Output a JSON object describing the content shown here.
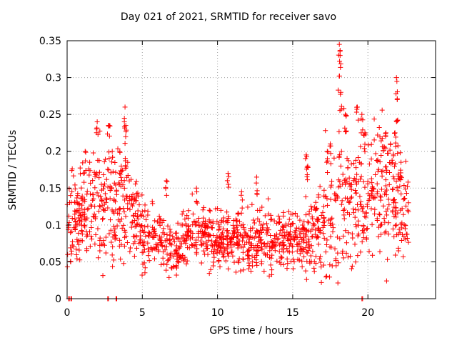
{
  "chart_data": {
    "type": "scatter",
    "title": "Day 021 of 2021, SRMTID for receiver savo",
    "xlabel": "GPS time / hours",
    "ylabel": "SRMTID / TECUs",
    "xlim": [
      0,
      24.5
    ],
    "ylim": [
      0,
      0.35
    ],
    "grid": true,
    "marker": "+",
    "color": "#ff0000",
    "x_ticks": [
      0,
      5,
      10,
      15,
      20
    ],
    "y_ticks": [
      0,
      0.05,
      0.1,
      0.15,
      0.2,
      0.25,
      0.3,
      0.35
    ],
    "x_tick_labels": [
      "0",
      "5",
      "10",
      "15",
      "20"
    ],
    "y_tick_labels": [
      "0",
      "0.05",
      "0.1",
      "0.15",
      "0.2",
      "0.25",
      "0.3",
      "0.35"
    ],
    "series": [
      {
        "name": "SRMTID",
        "profile": [
          [
            0.0,
            0.105,
            0.035
          ],
          [
            1.0,
            0.11,
            0.03
          ],
          [
            2.0,
            0.13,
            0.035
          ],
          [
            3.0,
            0.12,
            0.04
          ],
          [
            3.8,
            0.14,
            0.045
          ],
          [
            4.5,
            0.1,
            0.03
          ],
          [
            5.5,
            0.085,
            0.02
          ],
          [
            6.5,
            0.08,
            0.02
          ],
          [
            7.3,
            0.06,
            0.015
          ],
          [
            8.0,
            0.09,
            0.02
          ],
          [
            9.0,
            0.085,
            0.02
          ],
          [
            10.0,
            0.08,
            0.02
          ],
          [
            11.0,
            0.085,
            0.02
          ],
          [
            12.0,
            0.07,
            0.02
          ],
          [
            13.0,
            0.08,
            0.02
          ],
          [
            14.0,
            0.085,
            0.02
          ],
          [
            15.0,
            0.08,
            0.02
          ],
          [
            16.0,
            0.08,
            0.025
          ],
          [
            17.0,
            0.1,
            0.04
          ],
          [
            18.0,
            0.14,
            0.05
          ],
          [
            19.0,
            0.13,
            0.04
          ],
          [
            20.0,
            0.15,
            0.035
          ],
          [
            21.0,
            0.15,
            0.04
          ],
          [
            22.0,
            0.13,
            0.04
          ],
          [
            22.7,
            0.12,
            0.03
          ]
        ],
        "peaks": [
          [
            0.7,
            0.14
          ],
          [
            1.2,
            0.2
          ],
          [
            1.5,
            0.185
          ],
          [
            2.0,
            0.24
          ],
          [
            2.8,
            0.235
          ],
          [
            3.0,
            0.2
          ],
          [
            3.6,
            0.18
          ],
          [
            3.85,
            0.26
          ],
          [
            3.9,
            0.235
          ],
          [
            6.6,
            0.16
          ],
          [
            8.6,
            0.15
          ],
          [
            10.7,
            0.17
          ],
          [
            11.6,
            0.145
          ],
          [
            12.6,
            0.165
          ],
          [
            15.9,
            0.195
          ],
          [
            16.0,
            0.18
          ],
          [
            17.3,
            0.2
          ],
          [
            17.5,
            0.21
          ],
          [
            18.1,
            0.345
          ],
          [
            18.15,
            0.33
          ],
          [
            18.2,
            0.28
          ],
          [
            18.5,
            0.25
          ],
          [
            19.3,
            0.26
          ],
          [
            19.6,
            0.25
          ],
          [
            19.8,
            0.225
          ],
          [
            21.2,
            0.225
          ],
          [
            21.5,
            0.21
          ],
          [
            21.8,
            0.225
          ],
          [
            21.9,
            0.3
          ],
          [
            21.95,
            0.27
          ],
          [
            22.2,
            0.185
          ]
        ],
        "zero_values_x": [
          0.1,
          0.25,
          2.7,
          3.25,
          19.6
        ]
      }
    ]
  }
}
